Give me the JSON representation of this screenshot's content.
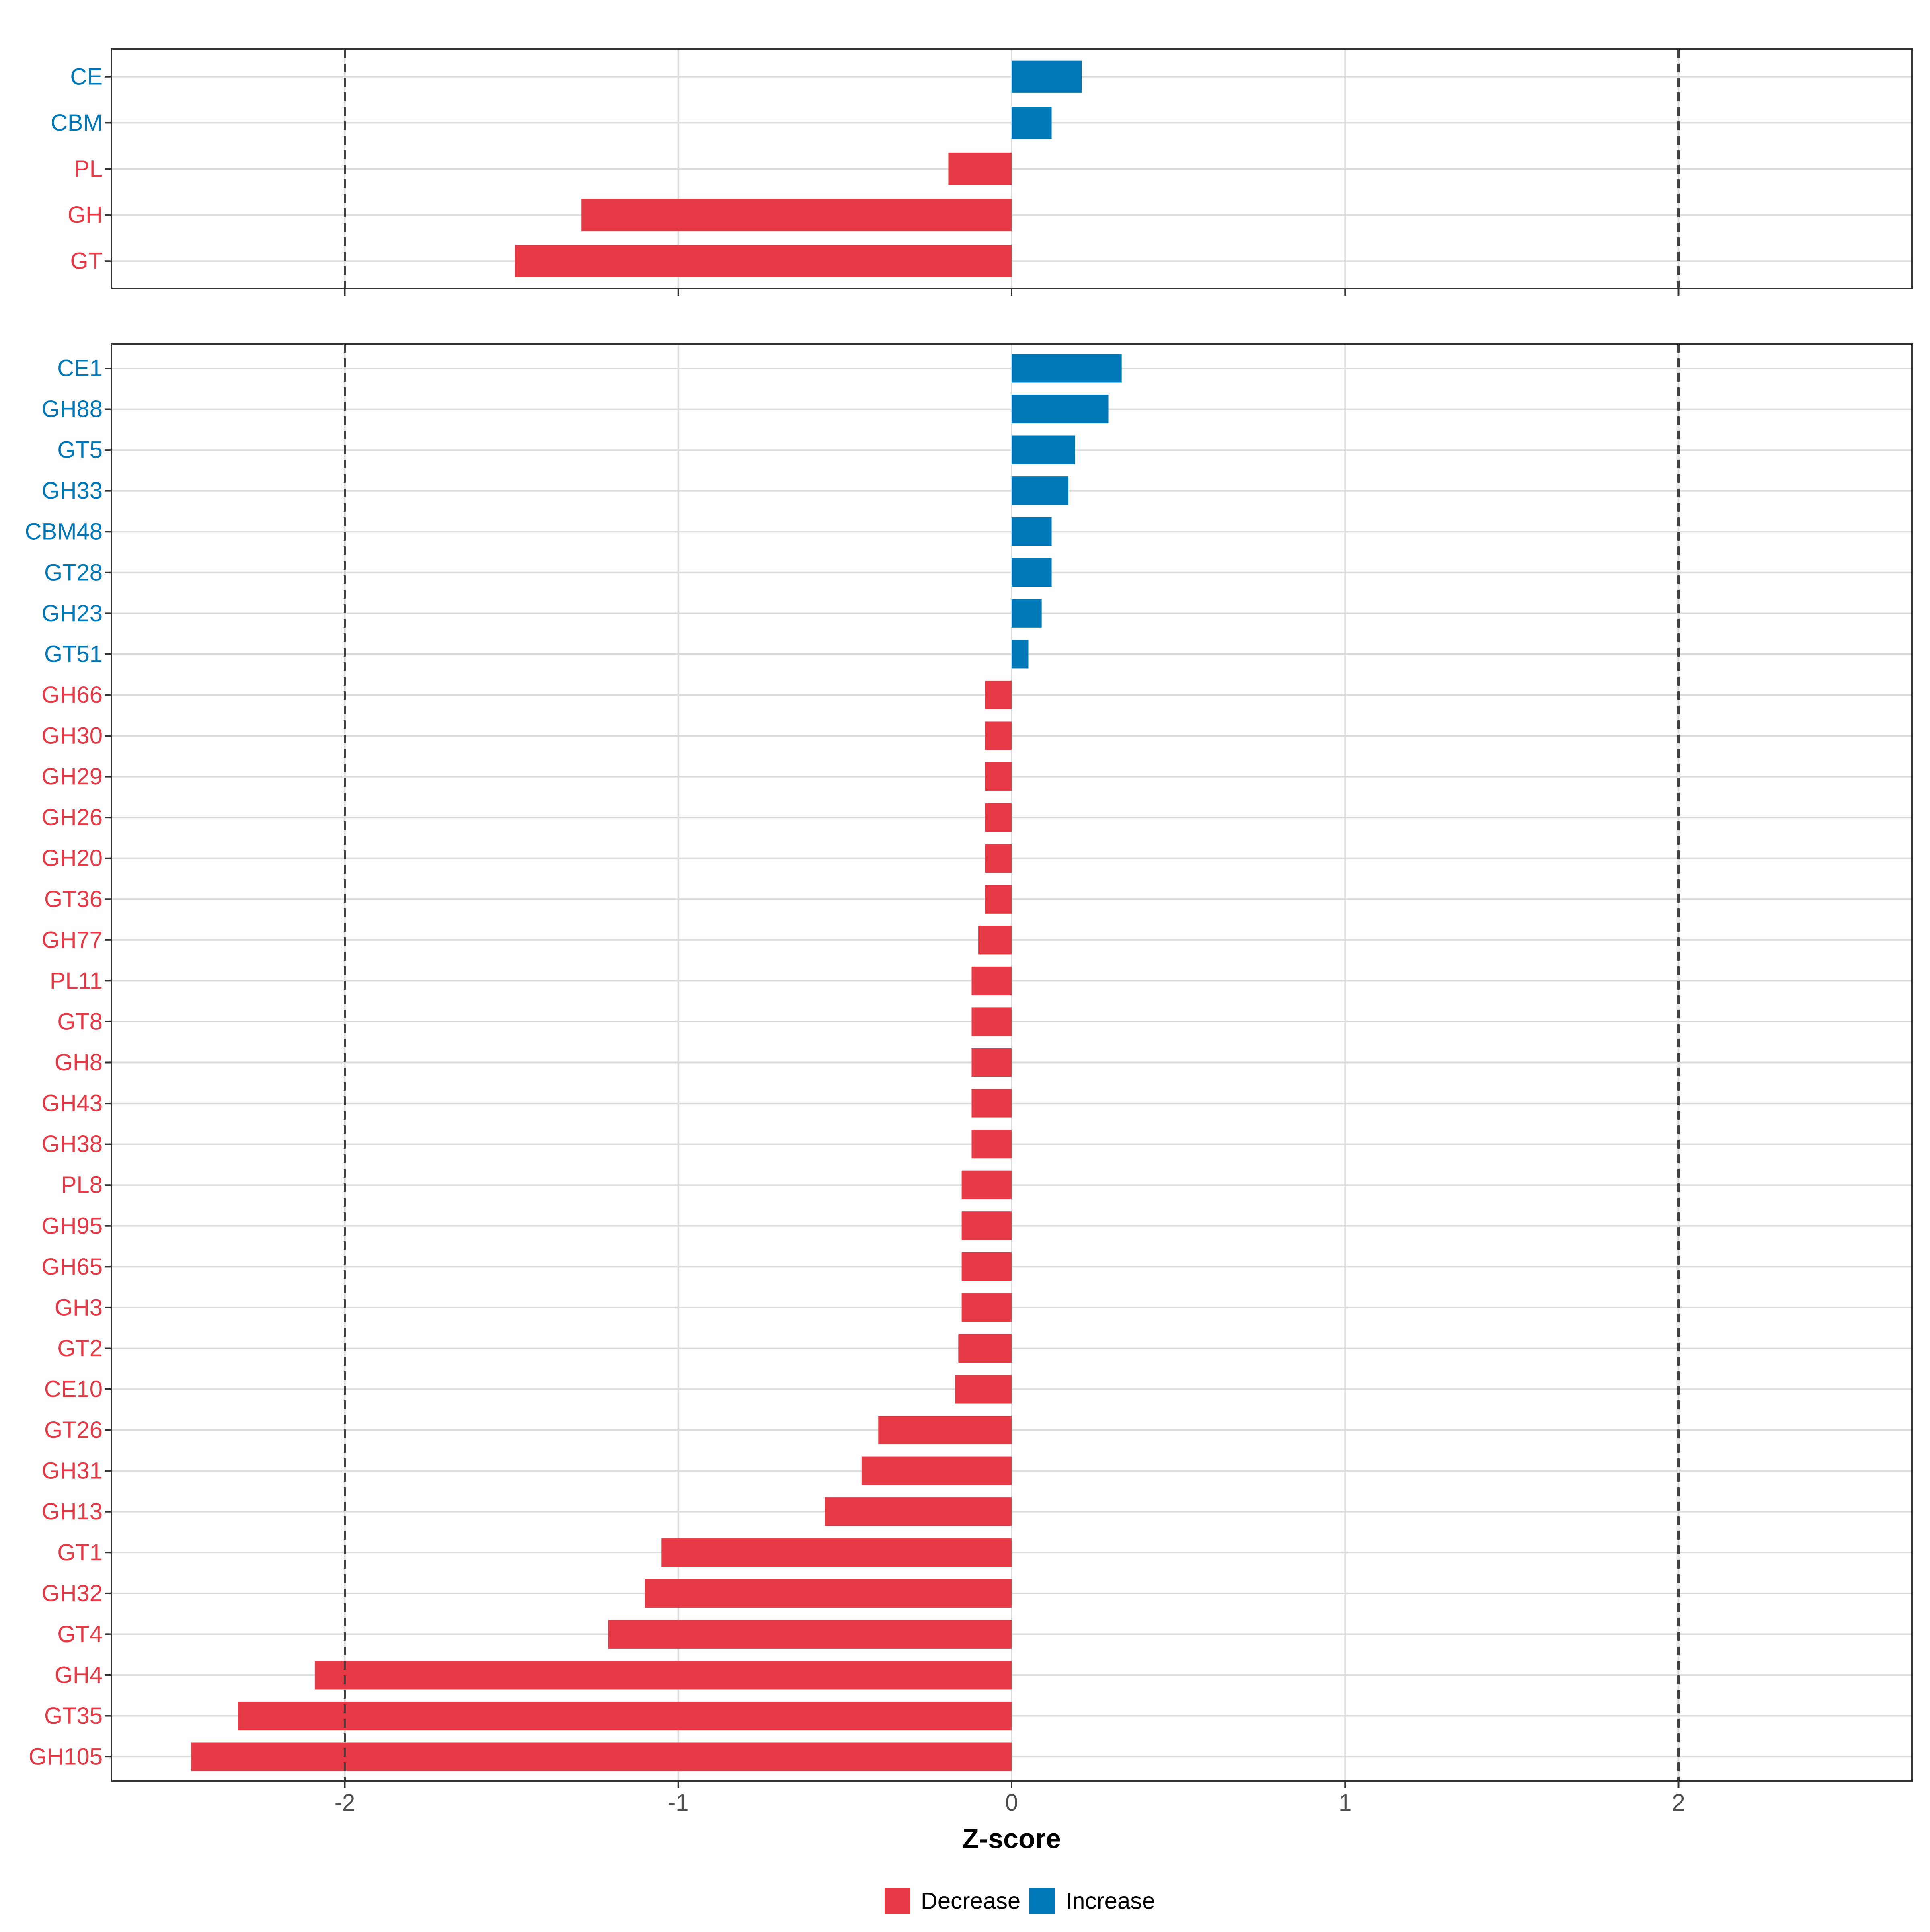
{
  "colors": {
    "decrease": "#E63946",
    "increase": "#0077B6"
  },
  "chart_data": [
    {
      "type": "bar",
      "orientation": "horizontal",
      "name": "top-panel",
      "categories": [
        "CE",
        "CBM",
        "PL",
        "GH",
        "GT"
      ],
      "values": [
        0.21,
        0.12,
        -0.19,
        -1.29,
        -1.49
      ],
      "xlim": [
        -2.7,
        2.7
      ],
      "reference_lines": [
        -2,
        2
      ]
    },
    {
      "type": "bar",
      "orientation": "horizontal",
      "name": "bottom-panel",
      "categories": [
        "CE1",
        "GH88",
        "GT5",
        "GH33",
        "CBM48",
        "GT28",
        "GH23",
        "GT51",
        "GH66",
        "GH30",
        "GH29",
        "GH26",
        "GH20",
        "GT36",
        "GH77",
        "PL11",
        "GT8",
        "GH8",
        "GH43",
        "GH38",
        "PL8",
        "GH95",
        "GH65",
        "GH3",
        "GT2",
        "CE10",
        "GT26",
        "GH31",
        "GH13",
        "GT1",
        "GH32",
        "GT4",
        "GH4",
        "GT35",
        "GH105"
      ],
      "values": [
        0.33,
        0.29,
        0.19,
        0.17,
        0.12,
        0.12,
        0.09,
        0.05,
        -0.08,
        -0.08,
        -0.08,
        -0.08,
        -0.08,
        -0.08,
        -0.1,
        -0.12,
        -0.12,
        -0.12,
        -0.12,
        -0.12,
        -0.15,
        -0.15,
        -0.15,
        -0.15,
        -0.16,
        -0.17,
        -0.4,
        -0.45,
        -0.56,
        -1.05,
        -1.1,
        -1.21,
        -2.09,
        -2.32,
        -2.46
      ],
      "xlim": [
        -2.7,
        2.7
      ],
      "reference_lines": [
        -2,
        2
      ]
    }
  ],
  "x_axis": {
    "ticks": [
      -2,
      -1,
      0,
      1,
      2
    ],
    "tick_labels": [
      "-2",
      "-1",
      "0",
      "1",
      "2"
    ],
    "title": "Z-score"
  },
  "legend": {
    "position": "bottom",
    "items": [
      {
        "label": "Decrease",
        "key": "decrease"
      },
      {
        "label": "Increase",
        "key": "increase"
      }
    ]
  }
}
